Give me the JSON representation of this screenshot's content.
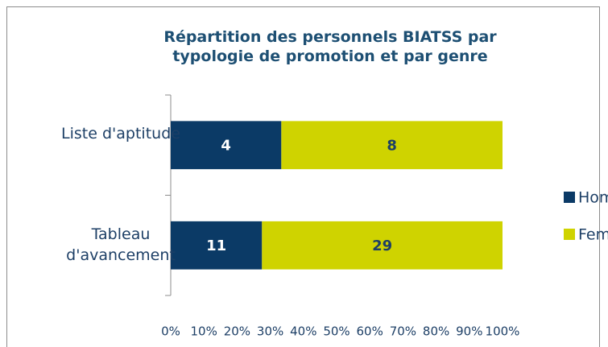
{
  "chart_data": {
    "type": "bar",
    "orientation": "horizontal",
    "stack": "percent",
    "title": "Répartition des personnels BIATSS par typologie de promotion et par genre",
    "categories": [
      "Liste d'aptitude",
      "Tableau d'avancement"
    ],
    "series": [
      {
        "name": "Homme",
        "color": "#0b3a66",
        "values": [
          4,
          11
        ]
      },
      {
        "name": "Femme",
        "color": "#cfd300",
        "values": [
          8,
          29
        ]
      }
    ],
    "xlim": [
      0,
      100
    ],
    "xticks": [
      {
        "value": 0,
        "label": "0%"
      },
      {
        "value": 10,
        "label": "10%"
      },
      {
        "value": 20,
        "label": "20%"
      },
      {
        "value": 30,
        "label": "30%"
      },
      {
        "value": 40,
        "label": "40%"
      },
      {
        "value": 50,
        "label": "50%"
      },
      {
        "value": 60,
        "label": "60%"
      },
      {
        "value": 70,
        "label": "70%"
      },
      {
        "value": 80,
        "label": "80%"
      },
      {
        "value": 90,
        "label": "90%"
      },
      {
        "value": 100,
        "label": "100%"
      }
    ],
    "legend": "right"
  }
}
